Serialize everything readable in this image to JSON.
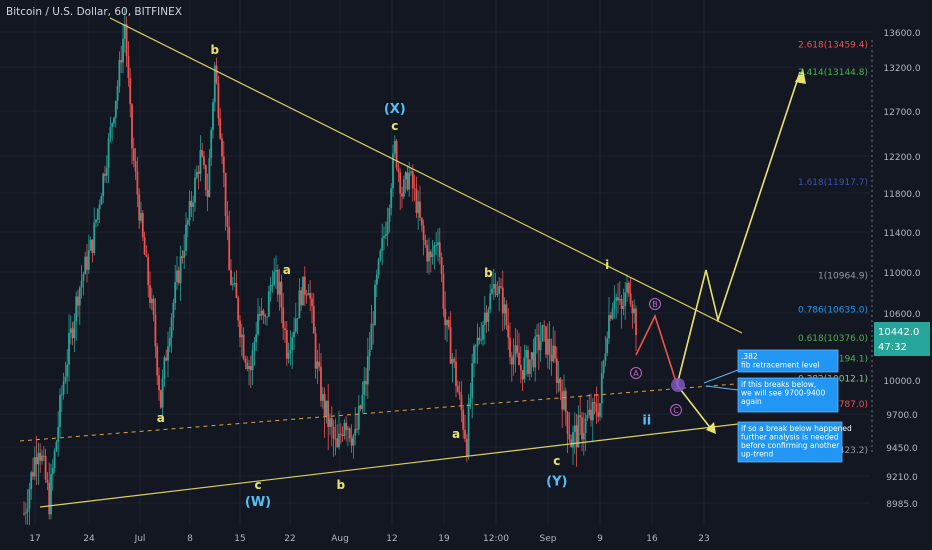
{
  "header": {
    "symbol": "Bitcoin / U.S. Dollar, 60, BITFINEX"
  },
  "colors": {
    "bg": "#131722",
    "up": "#26a69a",
    "down": "#ef5350",
    "wave": "#e9e271",
    "trend": "#d8cf5e",
    "axis_text": "#b2b5be",
    "grid": "#1e2230",
    "purple": "#9c27b0",
    "note_bg": "#2196f3",
    "note_fg": "#ffffff"
  },
  "price_badge": {
    "value": "10442.0",
    "timer": "47:32"
  },
  "chart_data": {
    "type": "candlestick",
    "x_ticks": [
      "17",
      "24",
      "Jul",
      "8",
      "15",
      "22",
      "Aug",
      "12",
      "19",
      "12:00",
      "Sep",
      "9",
      "16",
      "23"
    ],
    "y_ticks": [
      8985.0,
      9210.0,
      9450.0,
      9700.0,
      10000.0,
      10200.0,
      10600.0,
      11000.0,
      11400.0,
      11800.0,
      12200.0,
      12700.0,
      13200.0,
      13600.0
    ],
    "y_tick_labels": [
      "8985.0",
      "9210.0",
      "9450.0",
      "9700.0",
      "10000.0",
      "",
      "10600.0",
      "11000.0",
      "11400.0",
      "11800.0",
      "12200.0",
      "12700.0",
      "13200.0",
      "13600.0"
    ],
    "ylim": [
      8850,
      13800
    ],
    "price_path": [
      [
        0,
        8900
      ],
      [
        8,
        9500
      ],
      [
        14,
        9000
      ],
      [
        22,
        10000
      ],
      [
        30,
        10800
      ],
      [
        38,
        11300
      ],
      [
        46,
        12200
      ],
      [
        52,
        13000
      ],
      [
        56,
        13700
      ],
      [
        60,
        12300
      ],
      [
        66,
        11300
      ],
      [
        72,
        10500
      ],
      [
        76,
        9800
      ],
      [
        80,
        10400
      ],
      [
        86,
        11000
      ],
      [
        92,
        11600
      ],
      [
        98,
        12200
      ],
      [
        102,
        11800
      ],
      [
        106,
        13200
      ],
      [
        110,
        12300
      ],
      [
        114,
        11000
      ],
      [
        118,
        10700
      ],
      [
        122,
        10300
      ],
      [
        126,
        10100
      ],
      [
        130,
        10600
      ],
      [
        134,
        10500
      ],
      [
        138,
        11000
      ],
      [
        142,
        10800
      ],
      [
        146,
        10300
      ],
      [
        150,
        10500
      ],
      [
        154,
        10800
      ],
      [
        158,
        10900
      ],
      [
        162,
        10200
      ],
      [
        166,
        9800
      ],
      [
        170,
        9600
      ],
      [
        174,
        9400
      ],
      [
        178,
        9700
      ],
      [
        184,
        9500
      ],
      [
        190,
        10000
      ],
      [
        196,
        10900
      ],
      [
        202,
        11600
      ],
      [
        206,
        12300
      ],
      [
        210,
        11800
      ],
      [
        214,
        12000
      ],
      [
        218,
        11700
      ],
      [
        222,
        11300
      ],
      [
        226,
        11100
      ],
      [
        230,
        11400
      ],
      [
        234,
        10500
      ],
      [
        238,
        10200
      ],
      [
        242,
        9800
      ],
      [
        246,
        9500
      ],
      [
        250,
        10200
      ],
      [
        256,
        10600
      ],
      [
        262,
        10900
      ],
      [
        266,
        10700
      ],
      [
        270,
        10300
      ],
      [
        276,
        10100
      ],
      [
        282,
        10200
      ],
      [
        288,
        10400
      ],
      [
        294,
        10200
      ],
      [
        300,
        9800
      ],
      [
        304,
        9500
      ],
      [
        310,
        9600
      ],
      [
        316,
        9700
      ],
      [
        320,
        9800
      ],
      [
        324,
        10500
      ],
      [
        328,
        10800
      ],
      [
        332,
        10600
      ],
      [
        336,
        10900
      ],
      [
        340,
        10500
      ]
    ],
    "wave_labels": [
      {
        "t": "b",
        "x": 106,
        "y": 13350,
        "c": "wave"
      },
      {
        "t": "a",
        "x": 76,
        "y": 9640,
        "c": "wave"
      },
      {
        "t": "a",
        "x": 146,
        "y": 10980,
        "c": "wave"
      },
      {
        "t": "c",
        "x": 130,
        "y": 9100,
        "c": "wave"
      },
      {
        "t": "(W)",
        "x": 130,
        "y": 8960,
        "c": "teal"
      },
      {
        "t": "b",
        "x": 176,
        "y": 9100,
        "c": "wave"
      },
      {
        "t": "(X)",
        "x": 206,
        "y": 12680,
        "c": "teal"
      },
      {
        "t": "c",
        "x": 206,
        "y": 12490,
        "c": "wave"
      },
      {
        "t": "b",
        "x": 258,
        "y": 10950,
        "c": "wave"
      },
      {
        "t": "a",
        "x": 240,
        "y": 9520,
        "c": "wave"
      },
      {
        "t": "c",
        "x": 296,
        "y": 9300,
        "c": "wave"
      },
      {
        "t": "(Y)",
        "x": 296,
        "y": 9130,
        "c": "teal"
      },
      {
        "t": "i",
        "x": 324,
        "y": 11030,
        "c": "wave"
      },
      {
        "t": "ii",
        "x": 346,
        "y": 9620,
        "c": "teal"
      }
    ],
    "fib_levels": [
      {
        "ratio": "2.618",
        "price": "13459.4",
        "value": 13459.4,
        "color": "#ef5350"
      },
      {
        "ratio": "2.414",
        "price": "13144.8",
        "value": 13144.8,
        "color": "#4caf50"
      },
      {
        "ratio": "1.618",
        "price": "11917.7",
        "value": 11917.7,
        "color": "#3f51b5"
      },
      {
        "ratio": "1",
        "price": "10964.9",
        "value": 10964.9,
        "color": "#9598a1"
      },
      {
        "ratio": "0.786",
        "price": "10635.0",
        "value": 10635.0,
        "color": "#2196f3"
      },
      {
        "ratio": "0.618",
        "price": "10376.0",
        "value": 10376.0,
        "color": "#4caf50"
      },
      {
        "ratio": "0.5",
        "price": "10194.1",
        "value": 10194.1,
        "color": "#4caf50"
      },
      {
        "ratio": "0.382",
        "price": "10012.1",
        "value": 10012.1,
        "color": "#81c784"
      },
      {
        "ratio": "0.236",
        "price": "9787.0",
        "value": 9787.0,
        "color": "#ef5350"
      },
      {
        "ratio": "0",
        "price": "9423.2",
        "value": 9423.2,
        "color": "#9598a1"
      }
    ],
    "circle_labels": [
      "A",
      "B",
      "C"
    ]
  },
  "notes": [
    {
      "id": "note-fib",
      "lines": [
        ".382",
        "fib retracement level"
      ]
    },
    {
      "id": "note-break",
      "lines": [
        "if this breaks below,",
        "we will see 9700-9400",
        "again"
      ]
    },
    {
      "id": "note-further",
      "lines": [
        "if so a break below happened",
        "further analysis is needed",
        "before confirming another",
        "up-trend"
      ]
    }
  ]
}
